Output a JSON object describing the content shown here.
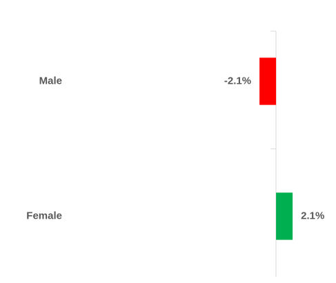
{
  "chart_data": {
    "type": "bar",
    "orientation": "horizontal",
    "categories": [
      "Male",
      "Female"
    ],
    "values": [
      -2.1,
      2.1
    ],
    "value_labels": [
      "-2.1%",
      "2.1%"
    ],
    "colors": [
      "#ff0000",
      "#00b050"
    ],
    "xlim": [
      -35,
      7.6
    ]
  }
}
